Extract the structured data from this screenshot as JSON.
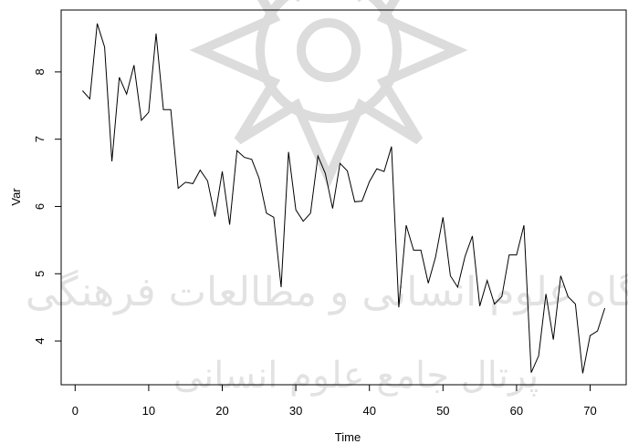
{
  "chart_data": {
    "type": "line",
    "title": "",
    "xlabel": "Time",
    "ylabel": "Var",
    "xlim": [
      -1.9,
      74.9
    ],
    "ylim": [
      3.35,
      8.92
    ],
    "x_ticks": [
      0,
      10,
      20,
      30,
      40,
      50,
      60,
      70
    ],
    "y_ticks": [
      4,
      5,
      6,
      7,
      8
    ],
    "grid": false,
    "series": [
      {
        "x": [
          1,
          2,
          3,
          4,
          5,
          6,
          7,
          8,
          9,
          10,
          11,
          12,
          13,
          14,
          15,
          16,
          17,
          18,
          19,
          20,
          21,
          22,
          23,
          24,
          25,
          26,
          27,
          28,
          29,
          30,
          31,
          32,
          33,
          34,
          35,
          36,
          37,
          38,
          39,
          40,
          41,
          42,
          43,
          44,
          45,
          46,
          47,
          48,
          49,
          50,
          51,
          52,
          53,
          54,
          55,
          56,
          57,
          58,
          59,
          60,
          61,
          62,
          63,
          64,
          65,
          66,
          67,
          68,
          69,
          70,
          71,
          72
        ],
        "values": [
          7.72,
          7.6,
          8.72,
          8.37,
          6.67,
          7.92,
          7.67,
          8.1,
          7.28,
          7.4,
          8.57,
          7.44,
          7.44,
          6.27,
          6.36,
          6.34,
          6.54,
          6.38,
          5.85,
          6.52,
          5.73,
          6.83,
          6.73,
          6.7,
          6.42,
          5.9,
          5.84,
          4.8,
          6.81,
          5.95,
          5.78,
          5.9,
          6.75,
          6.49,
          5.97,
          6.64,
          6.53,
          6.07,
          6.08,
          6.37,
          6.56,
          6.52,
          6.89,
          4.5,
          5.72,
          5.35,
          5.35,
          4.86,
          5.25,
          5.84,
          4.97,
          4.8,
          5.26,
          5.56,
          4.52,
          4.9,
          4.55,
          4.66,
          5.28,
          5.28,
          5.72,
          3.53,
          3.78,
          4.7,
          4.02,
          4.97,
          4.66,
          4.55,
          3.52,
          4.08,
          4.15,
          4.49
        ],
        "color": "#000000"
      }
    ]
  },
  "watermark": {
    "line1": "پژوهشگاه علوم انسانی و مطالعات فرهنگی",
    "line2": "پرتال جامع علوم انسانی"
  }
}
